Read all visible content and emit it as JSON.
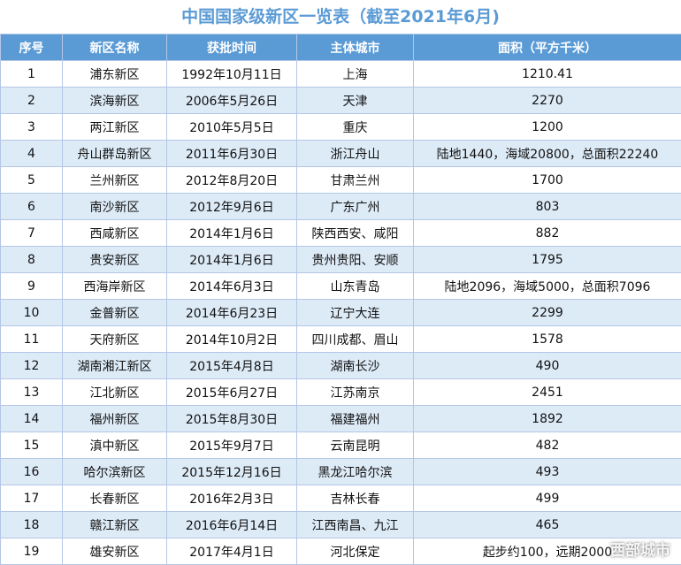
{
  "header": {
    "title": "中国国家级新区一览表（截至2021年6月)"
  },
  "table": {
    "columns": [
      "序号",
      "新区名称",
      "获批时间",
      "主体城市",
      "面积（平方千米）"
    ],
    "rows": [
      [
        "1",
        "浦东新区",
        "1992年10月11日",
        "上海",
        "1210.41"
      ],
      [
        "2",
        "滨海新区",
        "2006年5月26日",
        "天津",
        "2270"
      ],
      [
        "3",
        "两江新区",
        "2010年5月5日",
        "重庆",
        "1200"
      ],
      [
        "4",
        "舟山群岛新区",
        "2011年6月30日",
        "浙江舟山",
        "陆地1440，海域20800，总面积22240"
      ],
      [
        "5",
        "兰州新区",
        "2012年8月20日",
        "甘肃兰州",
        "1700"
      ],
      [
        "6",
        "南沙新区",
        "2012年9月6日",
        "广东广州",
        "803"
      ],
      [
        "7",
        "西咸新区",
        "2014年1月6日",
        "陕西西安、咸阳",
        "882"
      ],
      [
        "8",
        "贵安新区",
        "2014年1月6日",
        "贵州贵阳、安顺",
        "1795"
      ],
      [
        "9",
        "西海岸新区",
        "2014年6月3日",
        "山东青岛",
        "陆地2096，海域5000，总面积7096"
      ],
      [
        "10",
        "金普新区",
        "2014年6月23日",
        "辽宁大连",
        "2299"
      ],
      [
        "11",
        "天府新区",
        "2014年10月2日",
        "四川成都、眉山",
        "1578"
      ],
      [
        "12",
        "湖南湘江新区",
        "2015年4月8日",
        "湖南长沙",
        "490"
      ],
      [
        "13",
        "江北新区",
        "2015年6月27日",
        "江苏南京",
        "2451"
      ],
      [
        "14",
        "福州新区",
        "2015年8月30日",
        "福建福州",
        "1892"
      ],
      [
        "15",
        "滇中新区",
        "2015年9月7日",
        "云南昆明",
        "482"
      ],
      [
        "16",
        "哈尔滨新区",
        "2015年12月16日",
        "黑龙江哈尔滨",
        "493"
      ],
      [
        "17",
        "长春新区",
        "2016年2月3日",
        "吉林长春",
        "499"
      ],
      [
        "18",
        "赣江新区",
        "2016年6月14日",
        "江西南昌、九江",
        "465"
      ],
      [
        "19",
        "雄安新区",
        "2017年4月1日",
        "河北保定",
        "起步约100，远期2000"
      ]
    ]
  },
  "watermark": "西部城市"
}
